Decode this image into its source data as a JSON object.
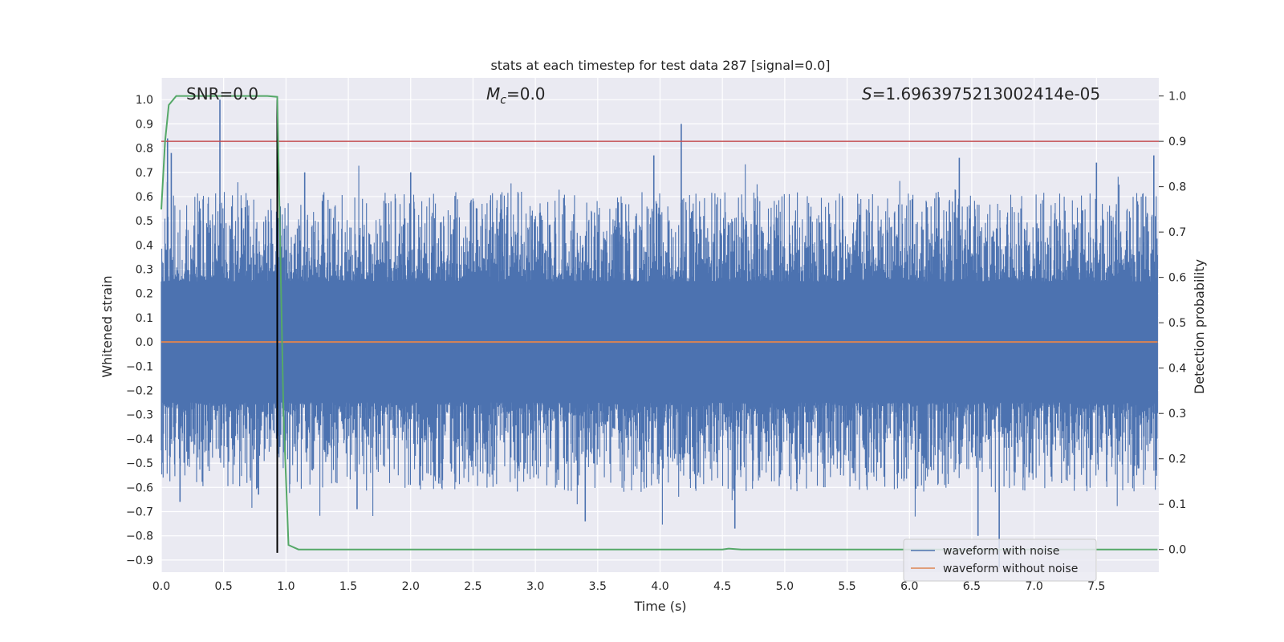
{
  "chart_data": {
    "type": "line",
    "title": "stats at each timestep for test data 287 [signal=0.0]",
    "xlabel": "Time (s)",
    "ylabel": "Whitened strain",
    "y2label": "Detection probability",
    "xlim": [
      0.0,
      8.0
    ],
    "ylim": [
      -0.95,
      1.09
    ],
    "y2lim": [
      -0.05,
      1.04
    ],
    "xticks": [
      "0.0",
      "0.5",
      "1.0",
      "1.5",
      "2.0",
      "2.5",
      "3.0",
      "3.5",
      "4.0",
      "4.5",
      "5.0",
      "5.5",
      "6.0",
      "6.5",
      "7.0",
      "7.5"
    ],
    "yticks": [
      "1.0",
      "0.9",
      "0.8",
      "0.7",
      "0.6",
      "0.5",
      "0.4",
      "0.3",
      "0.2",
      "0.1",
      "0.0",
      "−0.1",
      "−0.2",
      "−0.3",
      "−0.4",
      "−0.5",
      "−0.6",
      "−0.7",
      "−0.8",
      "−0.9"
    ],
    "y2ticks": [
      "1.0",
      "0.9",
      "0.8",
      "0.7",
      "0.6",
      "0.5",
      "0.4",
      "0.3",
      "0.2",
      "0.1",
      "0.0"
    ],
    "grid": true,
    "annotations": {
      "snr": "SNR=0.0",
      "mc_symbol": "M",
      "mc_sub": "c",
      "mc_value": "=0.0",
      "s_symbol": "S",
      "s_value": "=1.6963975213002414e-05"
    },
    "series": [
      {
        "name": "waveform with noise",
        "color": "#4c72b0",
        "noise_band": {
          "typical_max": 0.5,
          "typical_min": -0.5,
          "peak_max": 1.0,
          "peak_min": -0.93
        },
        "highlighted_peaks": [
          {
            "x": 0.05,
            "y": 0.84
          },
          {
            "x": 0.08,
            "y": 0.78
          },
          {
            "x": 0.15,
            "y": -0.66
          },
          {
            "x": 0.47,
            "y": 1.0
          },
          {
            "x": 0.78,
            "y": -0.63
          },
          {
            "x": 1.15,
            "y": 0.7
          },
          {
            "x": 1.57,
            "y": -0.69
          },
          {
            "x": 2.0,
            "y": 0.7
          },
          {
            "x": 3.4,
            "y": -0.74
          },
          {
            "x": 3.95,
            "y": 0.77
          },
          {
            "x": 4.17,
            "y": 0.9
          },
          {
            "x": 4.6,
            "y": -0.77
          },
          {
            "x": 6.4,
            "y": 0.76
          },
          {
            "x": 6.55,
            "y": -0.8
          },
          {
            "x": 6.72,
            "y": -0.93
          },
          {
            "x": 7.5,
            "y": 0.74
          },
          {
            "x": 7.96,
            "y": 0.77
          }
        ]
      },
      {
        "name": "waveform without noise",
        "color": "#dd8452",
        "x": [
          0.0,
          7.99
        ],
        "y": [
          0.0,
          0.0
        ]
      }
    ],
    "detection_probability": {
      "color": "#55a868",
      "axis": "right",
      "x": [
        0.0,
        0.03,
        0.06,
        0.12,
        0.2,
        0.5,
        0.85,
        0.93,
        0.98,
        1.02,
        1.1,
        2.0,
        4.0,
        4.5,
        4.55,
        4.65,
        5.0,
        6.0,
        7.0,
        7.99
      ],
      "y": [
        0.75,
        0.9,
        0.98,
        1.0,
        1.0,
        1.0,
        1.0,
        0.998,
        0.3,
        0.01,
        0.0,
        0.0,
        0.0,
        0.0,
        0.002,
        0.0,
        0.0,
        0.0,
        0.0,
        0.0
      ]
    },
    "threshold": {
      "color": "#c44e52",
      "axis": "right",
      "value": 0.9
    },
    "vertical_line": {
      "color": "#000000",
      "x": 0.93,
      "y_from": -0.87,
      "y_to": 1.0
    }
  },
  "legend": {
    "placement": "lower-right",
    "items": [
      {
        "label": "waveform with noise",
        "color": "#4c72b0"
      },
      {
        "label": "waveform without noise",
        "color": "#dd8452"
      }
    ]
  }
}
